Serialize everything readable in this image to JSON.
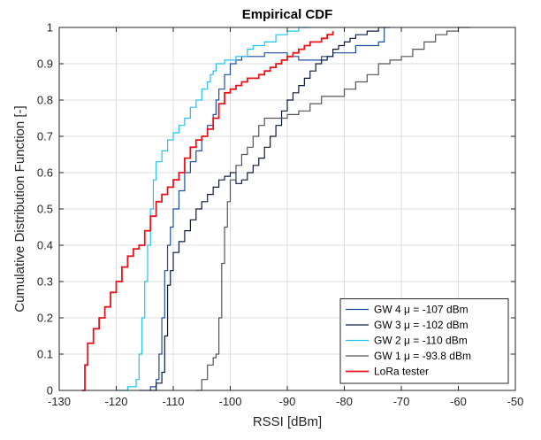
{
  "chart_data": {
    "type": "line",
    "title": "Empirical CDF",
    "xlabel": "RSSI [dBm]",
    "ylabel": "Cumulative Distribution Function [-]",
    "xlim": [
      -130,
      -50
    ],
    "ylim": [
      0,
      1
    ],
    "xticks": [
      -130,
      -120,
      -110,
      -100,
      -90,
      -80,
      -70,
      -60,
      -50
    ],
    "xtick_labels": [
      "-130",
      "-120",
      "-110",
      "-100",
      "-90",
      "-80",
      "-70",
      "-60",
      "-50"
    ],
    "yticks": [
      0,
      0.1,
      0.2,
      0.3,
      0.4,
      0.5,
      0.6,
      0.7,
      0.8,
      0.9,
      1
    ],
    "ytick_labels": [
      "0",
      "0.1",
      "0.2",
      "0.3",
      "0.4",
      "0.5",
      "0.6",
      "0.7",
      "0.8",
      "0.9",
      "1"
    ],
    "grid": true,
    "legend_position": "bottom-right",
    "series": [
      {
        "name": "GW 4 μ = -107 dBm",
        "color": "#1f4e9a",
        "width": 1.2,
        "x": [
          -116,
          -114,
          -113,
          -112.5,
          -112,
          -111.5,
          -111,
          -110.5,
          -110,
          -109,
          -108,
          -107,
          -106,
          -105,
          -104,
          -103,
          -102.5,
          -102,
          -101,
          -100,
          -99,
          -98,
          -96,
          -94,
          -92,
          -90,
          -88,
          -86,
          -84,
          -82,
          -80,
          -78,
          -76,
          -74,
          -73
        ],
        "y": [
          0,
          0.01,
          0.03,
          0.1,
          0.2,
          0.33,
          0.4,
          0.45,
          0.5,
          0.55,
          0.6,
          0.63,
          0.66,
          0.7,
          0.73,
          0.76,
          0.8,
          0.83,
          0.87,
          0.9,
          0.91,
          0.92,
          0.92,
          0.93,
          0.93,
          0.92,
          0.91,
          0.91,
          0.92,
          0.93,
          0.93,
          0.95,
          0.95,
          0.96,
          1
        ]
      },
      {
        "name": "GW 3 μ = -102 dBm",
        "color": "#0d1b3e",
        "width": 1.2,
        "x": [
          -114,
          -113,
          -112,
          -111.5,
          -111,
          -110.5,
          -110,
          -109,
          -108,
          -107,
          -106,
          -105,
          -104,
          -103,
          -102,
          -101,
          -100,
          -99,
          -98,
          -97,
          -96,
          -95,
          -94,
          -93,
          -92,
          -91,
          -90,
          -89,
          -88,
          -87,
          -86,
          -85,
          -84,
          -83,
          -82,
          -81,
          -80,
          -79,
          -78,
          -76,
          -74,
          -72
        ],
        "y": [
          0,
          0.02,
          0.05,
          0.15,
          0.29,
          0.33,
          0.38,
          0.41,
          0.44,
          0.47,
          0.5,
          0.52,
          0.54,
          0.56,
          0.58,
          0.59,
          0.6,
          0.57,
          0.58,
          0.6,
          0.62,
          0.64,
          0.67,
          0.7,
          0.73,
          0.77,
          0.8,
          0.82,
          0.84,
          0.86,
          0.88,
          0.9,
          0.91,
          0.92,
          0.94,
          0.95,
          0.96,
          0.97,
          0.98,
          0.99,
          1,
          1
        ]
      },
      {
        "name": "GW 2 μ = -110 dBm",
        "color": "#22c1ee",
        "width": 1.2,
        "x": [
          -120,
          -118,
          -116.5,
          -116,
          -115.5,
          -115,
          -114.5,
          -114,
          -113.5,
          -113,
          -112,
          -111,
          -110,
          -109,
          -108,
          -107,
          -106,
          -105,
          -104,
          -103.5,
          -103,
          -102.5,
          -102,
          -101,
          -100,
          -99,
          -98,
          -97,
          -96,
          -94,
          -92,
          -90,
          -88,
          -86
        ],
        "y": [
          0,
          0.01,
          0.03,
          0.1,
          0.2,
          0.3,
          0.4,
          0.5,
          0.58,
          0.63,
          0.66,
          0.69,
          0.71,
          0.73,
          0.75,
          0.78,
          0.8,
          0.83,
          0.85,
          0.87,
          0.88,
          0.9,
          0.9,
          0.91,
          0.91,
          0.92,
          0.92,
          0.94,
          0.95,
          0.96,
          0.98,
          0.99,
          1,
          1
        ]
      },
      {
        "name": "GW 1 μ = -93.8 dBm",
        "color": "#555555",
        "width": 1.2,
        "x": [
          -106,
          -105,
          -104,
          -103,
          -102.5,
          -102,
          -101.5,
          -101,
          -100.5,
          -100,
          -99,
          -98,
          -97,
          -96,
          -95,
          -94,
          -92,
          -90,
          -88,
          -86,
          -84,
          -82,
          -80,
          -78,
          -76,
          -74,
          -72,
          -70,
          -68,
          -66,
          -64,
          -62,
          -60,
          -58
        ],
        "y": [
          0,
          0.03,
          0.07,
          0.09,
          0.1,
          0.2,
          0.35,
          0.45,
          0.52,
          0.58,
          0.62,
          0.65,
          0.67,
          0.7,
          0.73,
          0.75,
          0.75,
          0.76,
          0.77,
          0.79,
          0.81,
          0.81,
          0.83,
          0.85,
          0.87,
          0.9,
          0.91,
          0.92,
          0.94,
          0.96,
          0.98,
          0.99,
          1,
          1
        ]
      },
      {
        "name": "LoRa tester",
        "color": "#e8141b",
        "width": 1.8,
        "x": [
          -126,
          -125.5,
          -125,
          -124,
          -123,
          -122,
          -121,
          -120,
          -119,
          -118,
          -117,
          -116,
          -115,
          -114,
          -113,
          -112,
          -111,
          -110,
          -109,
          -108,
          -107,
          -106,
          -105,
          -104,
          -103,
          -102,
          -101,
          -100,
          -99,
          -98,
          -97,
          -96,
          -95,
          -94,
          -93,
          -92,
          -91,
          -90,
          -89,
          -88,
          -87,
          -86,
          -85,
          -84,
          -83,
          -82
        ],
        "y": [
          0,
          0.07,
          0.13,
          0.17,
          0.2,
          0.23,
          0.27,
          0.3,
          0.34,
          0.37,
          0.39,
          0.4,
          0.44,
          0.48,
          0.52,
          0.54,
          0.56,
          0.58,
          0.6,
          0.64,
          0.67,
          0.69,
          0.7,
          0.72,
          0.75,
          0.79,
          0.82,
          0.83,
          0.84,
          0.85,
          0.86,
          0.86,
          0.87,
          0.88,
          0.89,
          0.9,
          0.91,
          0.92,
          0.93,
          0.94,
          0.95,
          0.96,
          0.96,
          0.97,
          0.98,
          0.99
        ]
      }
    ]
  }
}
